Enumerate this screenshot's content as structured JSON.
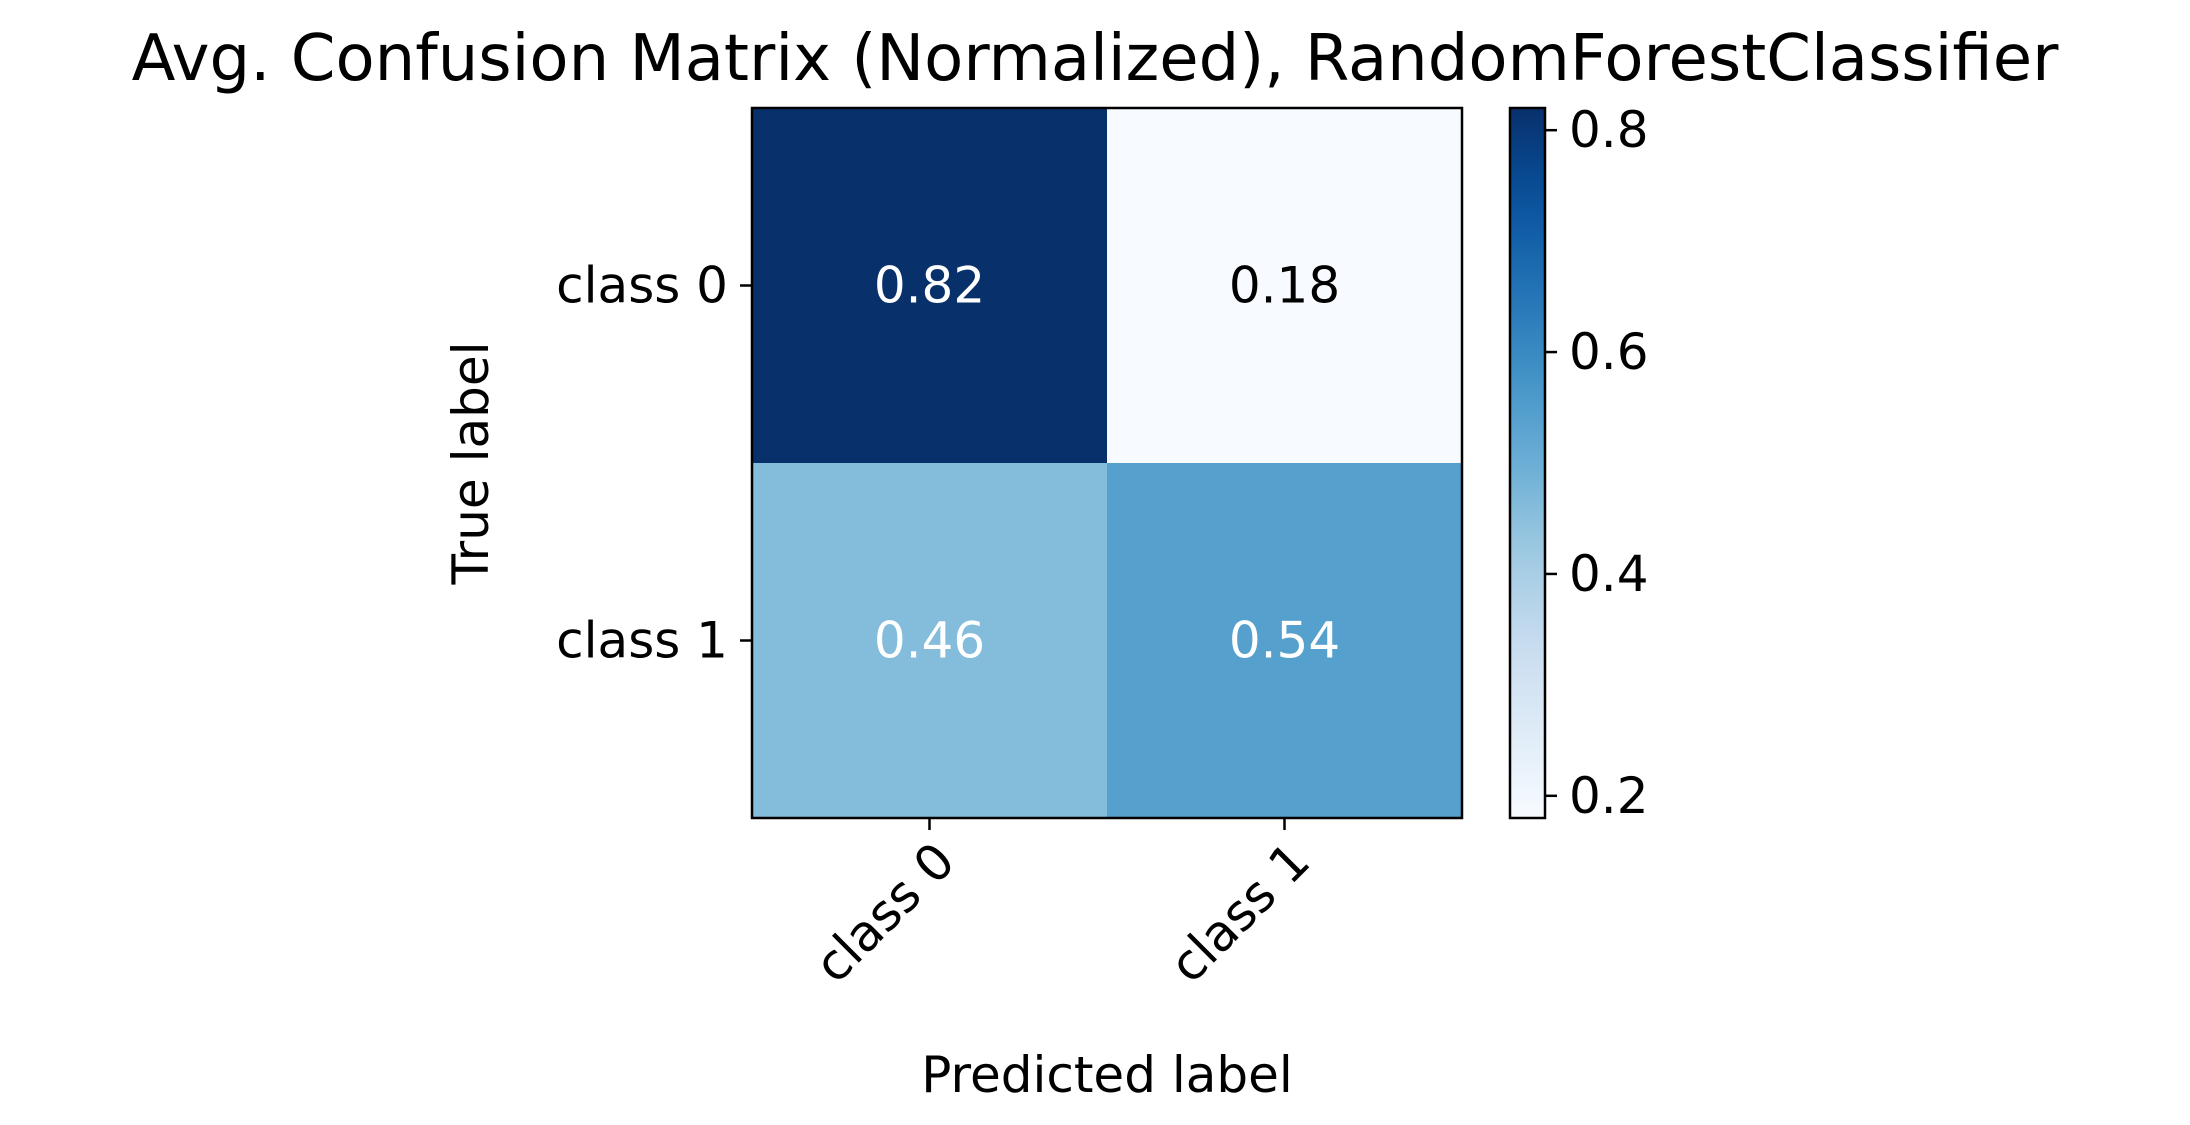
{
  "chart_data": {
    "type": "heatmap",
    "title": "Avg. Confusion Matrix (Normalized), RandomForestClassifier",
    "xlabel": "Predicted label",
    "ylabel": "True label",
    "x_categories": [
      "class 0",
      "class 1"
    ],
    "y_categories": [
      "class 0",
      "class 1"
    ],
    "values": [
      [
        0.82,
        0.18
      ],
      [
        0.46,
        0.54
      ]
    ],
    "value_labels": [
      [
        "0.82",
        "0.18"
      ],
      [
        "0.46",
        "0.54"
      ]
    ],
    "colormap": "Blues",
    "colorbar": {
      "range": [
        0.18,
        0.82
      ],
      "ticks": [
        0.2,
        0.4,
        0.6,
        0.8
      ],
      "tick_labels": [
        "0.2",
        "0.4",
        "0.6",
        "0.8"
      ]
    },
    "text_colors": {
      "dark_cell": "#ffffff",
      "light_cell": "#000000"
    }
  }
}
